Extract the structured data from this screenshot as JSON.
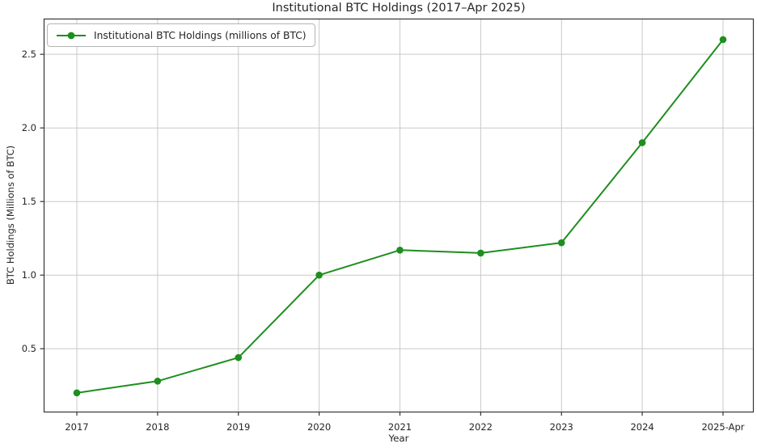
{
  "chart_data": {
    "type": "line",
    "title": "Institutional BTC Holdings (2017–Apr 2025)",
    "xlabel": "Year",
    "ylabel": "BTC Holdings (Millions of BTC)",
    "categories": [
      "2017",
      "2018",
      "2019",
      "2020",
      "2021",
      "2022",
      "2023",
      "2024",
      "2025-Apr"
    ],
    "series": [
      {
        "name": "Institutional BTC Holdings (millions of BTC)",
        "values": [
          0.2,
          0.28,
          0.44,
          1.0,
          1.17,
          1.15,
          1.22,
          1.9,
          2.6
        ],
        "color": "#1e8e1e",
        "marker": "circle"
      }
    ],
    "yticks": [
      0.5,
      1.0,
      1.5,
      2.0,
      2.5
    ],
    "ytick_labels": [
      "0.5",
      "1.0",
      "1.5",
      "2.0",
      "2.5"
    ],
    "ylim": [
      0.07,
      2.74
    ],
    "grid": true,
    "legend_position": "upper-left"
  },
  "colors": {
    "line": "#1e8e1e",
    "grid": "#c9c9c9",
    "spine": "#363636",
    "text": "#262626",
    "background": "#ffffff",
    "legend_border": "#b4b4b4"
  }
}
